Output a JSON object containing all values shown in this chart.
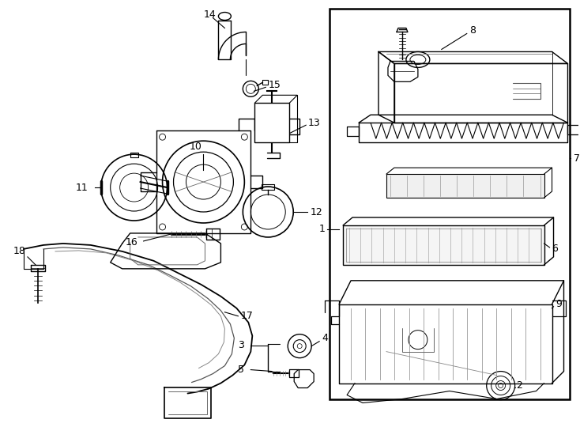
{
  "background_color": "#ffffff",
  "fig_width": 7.34,
  "fig_height": 5.4,
  "dpi": 100
}
